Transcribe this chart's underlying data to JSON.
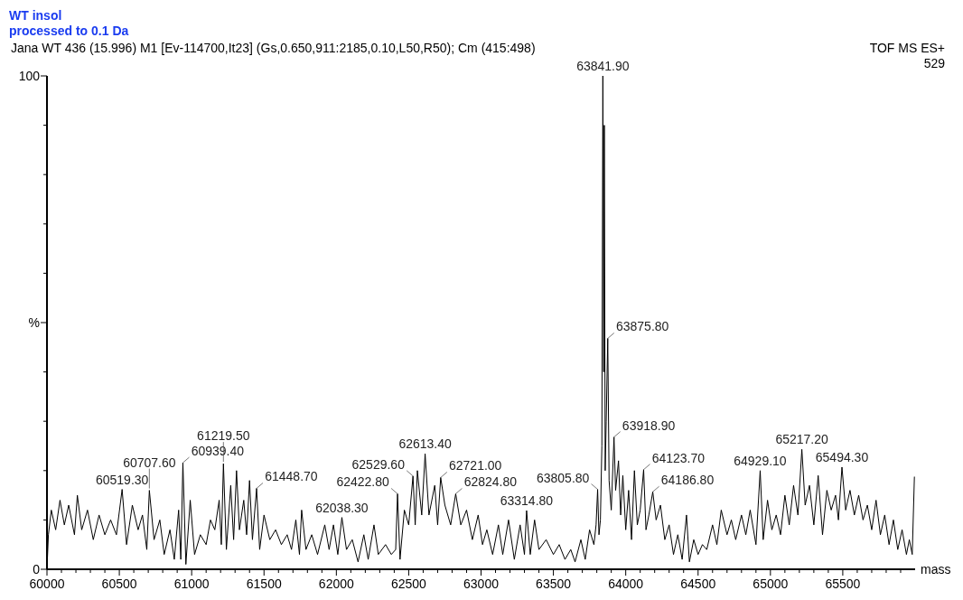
{
  "chart_data": {
    "type": "line",
    "title": "WT insol",
    "subtitle": "processed to 0.1 Da",
    "xlabel": "mass",
    "annotations": [
      "Jana WT  436 (15.996) M1 [Ev-114700,It23] (Gs,0.650,911:2185,0.10,L50,R50); Cm (415:498)",
      "TOF MS ES+",
      "529",
      {
        "text": "60519.30",
        "x": 60519.3,
        "y": 16.2
      },
      {
        "text": "60707.60",
        "x": 60707.6,
        "y": 16
      },
      {
        "text": "60939.40",
        "x": 60939.4,
        "y": 21.6
      },
      {
        "text": "61219.50",
        "x": 61219.5,
        "y": 21.4
      },
      {
        "text": "61448.70",
        "x": 61448.7,
        "y": 16.4
      },
      {
        "text": "62038.30",
        "x": 62038.3,
        "y": 10.5
      },
      {
        "text": "62422.80",
        "x": 62422.8,
        "y": 15.3
      },
      {
        "text": "62529.60",
        "x": 62529.6,
        "y": 18.9
      },
      {
        "text": "62613.40",
        "x": 62613.4,
        "y": 23.4
      },
      {
        "text": "62721.00",
        "x": 62721,
        "y": 18.6
      },
      {
        "text": "62824.80",
        "x": 62824.8,
        "y": 15.3
      },
      {
        "text": "63314.80",
        "x": 63314.8,
        "y": 11.9
      },
      {
        "text": "63805.80",
        "x": 63805.8,
        "y": 16.2
      },
      {
        "text": "63841.90",
        "x": 63841.9,
        "y": 100
      },
      {
        "text": "63875.80",
        "x": 63875.8,
        "y": 46.8
      },
      {
        "text": "63918.90",
        "x": 63918.9,
        "y": 26.8
      },
      {
        "text": "64123.70",
        "x": 64123.7,
        "y": 20.2
      },
      {
        "text": "64186.80",
        "x": 64186.8,
        "y": 15.7
      },
      {
        "text": "64929.10",
        "x": 64929.1,
        "y": 20
      },
      {
        "text": "65217.20",
        "x": 65217.2,
        "y": 24.3
      },
      {
        "text": "65494.30",
        "x": 65494.3,
        "y": 20.7
      }
    ],
    "xlim": [
      60000,
      66000
    ],
    "xticks": [
      60000,
      {
        "value": 60100,
        "label": null
      },
      {
        "value": 60200,
        "label": null
      },
      {
        "value": 60300,
        "label": null
      },
      {
        "value": 60400,
        "label": null
      },
      60500,
      {
        "value": 60600,
        "label": null
      },
      {
        "value": 60700,
        "label": null
      },
      {
        "value": 60800,
        "label": null
      },
      {
        "value": 60900,
        "label": null
      },
      61000,
      {
        "value": 61100,
        "label": null
      },
      {
        "value": 61200,
        "label": null
      },
      {
        "value": 61300,
        "label": null
      },
      {
        "value": 61400,
        "label": null
      },
      61500,
      {
        "value": 61600,
        "label": null
      },
      {
        "value": 61700,
        "label": null
      },
      {
        "value": 61800,
        "label": null
      },
      {
        "value": 61900,
        "label": null
      },
      62000,
      {
        "value": 62100,
        "label": null
      },
      {
        "value": 62200,
        "label": null
      },
      {
        "value": 62300,
        "label": null
      },
      {
        "value": 62400,
        "label": null
      },
      62500,
      {
        "value": 62600,
        "label": null
      },
      {
        "value": 62700,
        "label": null
      },
      {
        "value": 62800,
        "label": null
      },
      {
        "value": 62900,
        "label": null
      },
      63000,
      {
        "value": 63100,
        "label": null
      },
      {
        "value": 63200,
        "label": null
      },
      {
        "value": 63300,
        "label": null
      },
      {
        "value": 63400,
        "label": null
      },
      63500,
      {
        "value": 63600,
        "label": null
      },
      {
        "value": 63700,
        "label": null
      },
      {
        "value": 63800,
        "label": null
      },
      {
        "value": 63900,
        "label": null
      },
      64000,
      {
        "value": 64100,
        "label": null
      },
      {
        "value": 64200,
        "label": null
      },
      {
        "value": 64300,
        "label": null
      },
      {
        "value": 64400,
        "label": null
      },
      64500,
      {
        "value": 64600,
        "label": null
      },
      {
        "value": 64700,
        "label": null
      },
      {
        "value": 64800,
        "label": null
      },
      {
        "value": 64900,
        "label": null
      },
      65000,
      {
        "value": 65100,
        "label": null
      },
      {
        "value": 65200,
        "label": null
      },
      {
        "value": 65300,
        "label": null
      },
      {
        "value": 65400,
        "label": null
      },
      65500,
      {
        "value": 65600,
        "label": null
      },
      {
        "value": 65700,
        "label": null
      },
      {
        "value": 65800,
        "label": null
      },
      {
        "value": 65900,
        "label": null
      }
    ],
    "ylim": [
      0,
      100
    ],
    "yticks": [
      0,
      {
        "value": 10,
        "label": null
      },
      {
        "value": 20,
        "label": null
      },
      {
        "value": 30,
        "label": null
      },
      {
        "value": 40,
        "label": null
      },
      {
        "value": 50,
        "label": "%"
      },
      {
        "value": 60,
        "label": null
      },
      {
        "value": 70,
        "label": null
      },
      {
        "value": 80,
        "label": null
      },
      {
        "value": 90,
        "label": null
      },
      100
    ],
    "grid": false,
    "marker": "none",
    "line_style": "solid",
    "series": [
      {
        "color": "#000000",
        "x": [
          60000,
          60010,
          60030,
          60060,
          60090,
          60120,
          60150,
          60190,
          60210,
          60240,
          60280,
          60320,
          60360,
          60400,
          60440,
          60480,
          60519.3,
          60550,
          60590,
          60630,
          60660,
          60690,
          60707.6,
          60740,
          60780,
          60810,
          60850,
          60880,
          60910,
          60925,
          60939.4,
          60960,
          60990,
          61020,
          61060,
          61100,
          61130,
          61160,
          61190,
          61205,
          61219.5,
          61240,
          61270,
          61290,
          61310,
          61330,
          61360,
          61380,
          61400,
          61420,
          61448.7,
          61470,
          61500,
          61540,
          61580,
          61620,
          61660,
          61690,
          61720,
          61745,
          61760,
          61790,
          61830,
          61870,
          61920,
          61950,
          61980,
          62010,
          62038.3,
          62070,
          62110,
          62150,
          62190,
          62220,
          62260,
          62290,
          62340,
          62380,
          62410,
          62422.8,
          62440,
          62470,
          62500,
          62529.6,
          62545,
          62560,
          62590,
          62613.4,
          62640,
          62680,
          62700,
          62721,
          62750,
          62790,
          62824.8,
          62860,
          62900,
          62940,
          62980,
          63010,
          63040,
          63080,
          63120,
          63150,
          63190,
          63230,
          63270,
          63300,
          63314.8,
          63340,
          63370,
          63400,
          63450,
          63500,
          63540,
          63580,
          63620,
          63650,
          63690,
          63720,
          63750,
          63780,
          63795,
          63805.8,
          63815,
          63825,
          63835,
          63841.9,
          63848,
          63852,
          63858,
          63865,
          63875.8,
          63885,
          63900,
          63918.9,
          63930,
          63950,
          63965,
          63980,
          64000,
          64020,
          64040,
          64060,
          64080,
          64100,
          64123.7,
          64140,
          64160,
          64186.8,
          64210,
          64240,
          64270,
          64300,
          64330,
          64360,
          64390,
          64420,
          64440,
          64470,
          64500,
          64530,
          64560,
          64600,
          64630,
          64660,
          64700,
          64730,
          64760,
          64800,
          64830,
          64860,
          64900,
          64929.1,
          64950,
          64980,
          65010,
          65040,
          65070,
          65100,
          65130,
          65160,
          65190,
          65217.2,
          65240,
          65270,
          65300,
          65330,
          65360,
          65390,
          65420,
          65450,
          65470,
          65494.3,
          65520,
          65550,
          65580,
          65610,
          65640,
          65670,
          65700,
          65730,
          65760,
          65790,
          65820,
          65850,
          65880,
          65910,
          65940,
          65960,
          65980,
          65995
        ],
        "values": [
          0,
          7,
          12,
          8,
          14,
          9,
          13,
          7,
          15,
          8,
          12,
          6,
          11,
          7,
          10,
          7,
          16.2,
          5,
          13,
          8,
          11,
          4,
          16,
          6,
          10,
          3,
          8,
          2,
          12,
          2,
          21.6,
          1,
          14,
          3,
          7,
          5,
          10,
          8,
          14,
          5,
          21.4,
          4,
          17,
          6,
          20,
          8,
          14,
          7,
          18,
          6,
          16.4,
          4,
          11,
          6,
          8,
          5,
          7,
          4,
          10,
          3,
          12,
          4,
          7,
          3,
          9,
          4,
          9,
          3,
          10.5,
          4,
          6,
          1.5,
          7,
          2,
          9,
          3,
          5,
          3,
          4,
          15.3,
          2,
          12,
          9,
          18.9,
          9,
          20,
          11,
          23.4,
          11,
          17,
          9,
          18.6,
          13,
          9,
          15.3,
          9,
          12,
          6,
          11,
          5,
          8,
          3,
          9,
          3,
          10,
          2,
          9,
          3,
          11.9,
          3,
          10,
          4,
          6,
          3,
          5,
          2,
          4,
          1.5,
          6,
          2,
          8,
          5,
          9,
          16.2,
          7,
          10,
          25,
          100,
          40,
          90,
          20,
          30,
          46.8,
          18,
          12,
          26.8,
          16,
          22,
          11,
          19,
          8,
          16,
          6,
          20,
          9,
          12,
          20.2,
          8,
          11,
          15.7,
          10,
          13,
          6,
          9,
          3,
          7,
          2,
          11,
          1.5,
          6,
          3,
          5,
          4,
          9,
          5,
          12,
          7,
          10,
          6,
          11,
          7,
          12,
          5,
          20,
          6,
          14,
          8,
          11,
          7,
          15,
          9,
          17,
          11,
          24.3,
          13,
          17,
          9,
          19,
          7,
          16,
          12,
          15,
          10,
          20.7,
          12,
          16,
          11,
          15,
          10,
          13,
          8,
          14,
          7,
          11,
          5,
          10,
          4,
          8,
          3,
          6,
          3,
          18.7
        ]
      }
    ]
  }
}
